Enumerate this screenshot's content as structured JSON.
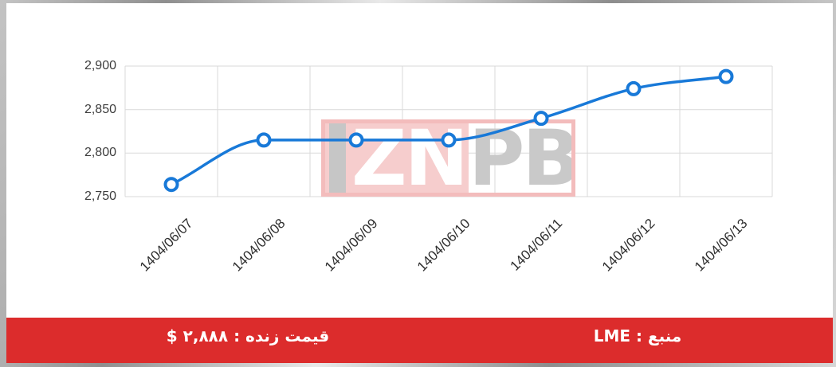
{
  "chart_data": {
    "type": "line",
    "title": "",
    "xlabel": "",
    "ylabel": "",
    "categories": [
      "1404/06/07",
      "1404/06/08",
      "1404/06/09",
      "1404/06/10",
      "1404/06/11",
      "1404/06/12",
      "1404/06/13"
    ],
    "series": [
      {
        "name": "LME",
        "values": [
          2764,
          2815,
          2815,
          2815,
          2840,
          2874,
          2888
        ]
      }
    ],
    "ylim": [
      2750,
      2900
    ],
    "yticks": [
      {
        "value": 2750,
        "label": "2,750"
      },
      {
        "value": 2800,
        "label": "2,800"
      },
      {
        "value": 2850,
        "label": "2,850"
      },
      {
        "value": 2900,
        "label": "2,900"
      }
    ],
    "grid": true,
    "legend": "none",
    "x_label_rotation_deg": -45,
    "line_color": "#1879d8",
    "marker_style": "open-circle",
    "marker_fill": "#ffffff",
    "grid_color": "#d9d9d9",
    "axis_text_color": "#3d3d3d",
    "x_text_color": "#2e2e2e"
  },
  "watermark": {
    "text": "IZNPB",
    "zn": "ZN",
    "pb": "PB",
    "box_border_color": "#f3bcbc",
    "box_fill_color": "#f6cdcd",
    "gray_color": "#c6c6c6",
    "letter_color": "#ffffff"
  },
  "footer": {
    "background": "#dc2c2c",
    "text_color": "#ffffff",
    "live_price_label": "قیمت زنده : ۲,۸۸۸ $",
    "live_price_value": "۲,۸۸۸",
    "source_label": "منبع : LME",
    "source_value": "LME"
  }
}
